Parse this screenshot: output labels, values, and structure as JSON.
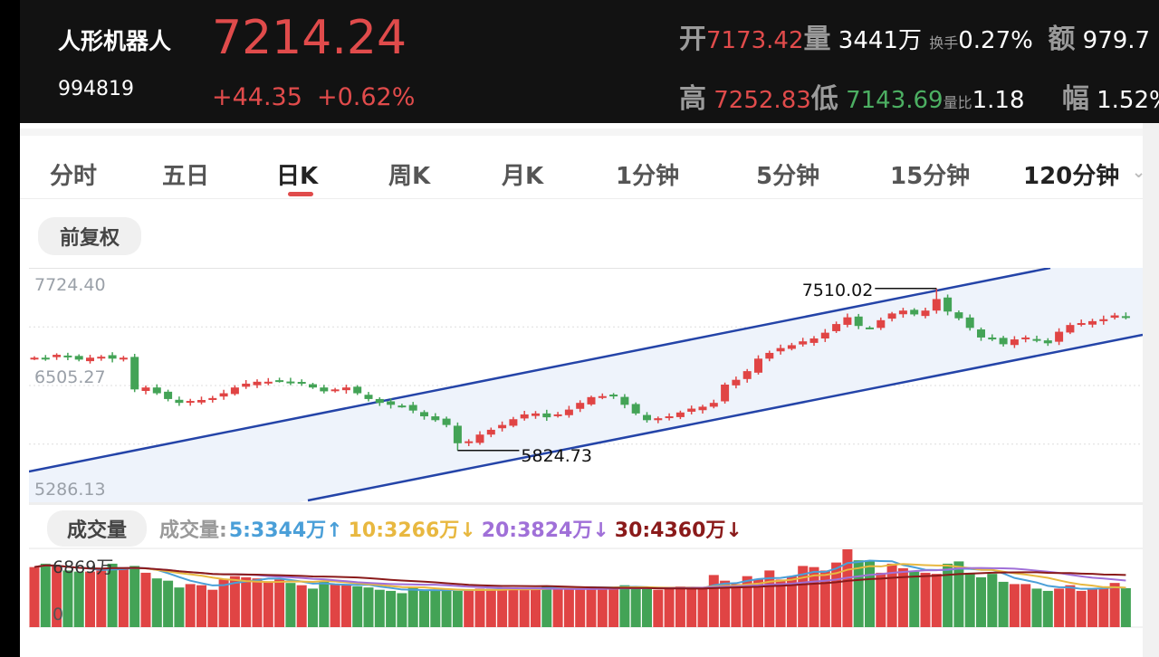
{
  "header": {
    "name": "人形机器人",
    "code": "994819",
    "price": "7214.24",
    "change": "+44.35",
    "change_pct": "+0.62%",
    "stats": {
      "open_label": "开",
      "open": "7173.42",
      "vol_label": "量",
      "vol": "3441万",
      "turnover_label": "换手",
      "turnover": "0.27%",
      "amount_label": "额",
      "amount": "979.7",
      "high_label": "高",
      "high": "7252.83",
      "low_label": "低",
      "low": "7143.69",
      "ratio_label": "量比",
      "ratio": "1.18",
      "amp_label": "幅",
      "amp": "1.52%"
    }
  },
  "tabs": [
    {
      "label": "分时"
    },
    {
      "label": "五日"
    },
    {
      "label": "日K",
      "active": true
    },
    {
      "label": "周K"
    },
    {
      "label": "月K"
    },
    {
      "label": "1分钟"
    },
    {
      "label": "5分钟"
    },
    {
      "label": "15分钟"
    },
    {
      "label": "120分钟"
    }
  ],
  "adjust_label": "前复权",
  "colors": {
    "up": "#e04444",
    "down": "#43a356",
    "channel": "#2444a8",
    "channel_fill": "#eef3fb",
    "ma5": "#4a9fd8",
    "ma10": "#e8b840",
    "ma20": "#a070d8",
    "ma30": "#8a1a1a"
  },
  "volume_legend": {
    "button": "成交量",
    "title": "成交量:",
    "ma5": "5:3344万↑",
    "ma10": "10:3266万↓",
    "ma20": "20:3824万↓",
    "ma30": "30:4360万↓"
  },
  "chart_data": {
    "type": "candlestick",
    "y_labels": [
      "7724.40",
      "6505.27",
      "5286.13"
    ],
    "ylim": [
      5286.13,
      7724.4
    ],
    "grid": true,
    "high_marker": {
      "label": "7510.02",
      "value": 7510.02,
      "index": 81
    },
    "low_marker": {
      "label": "5824.73",
      "value": 5824.73,
      "index": 38
    },
    "close": [
      6790,
      6780,
      6820,
      6800,
      6770,
      6790,
      6800,
      6780,
      6790,
      6460,
      6480,
      6420,
      6360,
      6320,
      6340,
      6350,
      6370,
      6420,
      6480,
      6520,
      6540,
      6540,
      6550,
      6530,
      6530,
      6480,
      6440,
      6460,
      6480,
      6420,
      6360,
      6320,
      6300,
      6290,
      6240,
      6180,
      6140,
      6090,
      5900,
      5920,
      5990,
      6040,
      6090,
      6150,
      6200,
      6210,
      6170,
      6200,
      6250,
      6320,
      6380,
      6390,
      6390,
      6300,
      6210,
      6140,
      6160,
      6180,
      6220,
      6260,
      6280,
      6320,
      6510,
      6560,
      6650,
      6780,
      6840,
      6890,
      6920,
      6960,
      6990,
      7050,
      7140,
      7210,
      7120,
      7100,
      7180,
      7250,
      7280,
      7240,
      7280,
      7400,
      7270,
      7200,
      7100,
      7000,
      6980,
      6930,
      6980,
      7000,
      6970,
      6940,
      7060,
      7130,
      7150,
      7170,
      7190,
      7230,
      7214.24
    ],
    "volume_max_label": "6869万",
    "volume_zero_label": "0",
    "volume": [
      5300,
      5600,
      5400,
      5000,
      4900,
      4900,
      5000,
      5600,
      5200,
      5400,
      4800,
      4300,
      4100,
      3500,
      3800,
      3700,
      3300,
      4200,
      4500,
      4400,
      4300,
      4000,
      4200,
      3900,
      3700,
      3400,
      4100,
      3800,
      3700,
      3600,
      3500,
      3300,
      3200,
      3000,
      3500,
      3300,
      3300,
      3200,
      3200,
      3300,
      3400,
      3400,
      3300,
      3500,
      3400,
      3400,
      3600,
      3500,
      3500,
      3400,
      3600,
      3500,
      3500,
      3700,
      3500,
      3400,
      3300,
      3400,
      3600,
      3500,
      3400,
      4600,
      4100,
      3800,
      4500,
      4200,
      5000,
      4200,
      4500,
      5400,
      5300,
      5000,
      5700,
      6869,
      5900,
      5900,
      4800,
      5600,
      5200,
      4900,
      4800,
      4700,
      5600,
      5800,
      4800,
      4400,
      4700,
      4000,
      3800,
      3800,
      3400,
      3200,
      3400,
      3700,
      3200,
      3400,
      3400,
      3900,
      3441
    ]
  }
}
